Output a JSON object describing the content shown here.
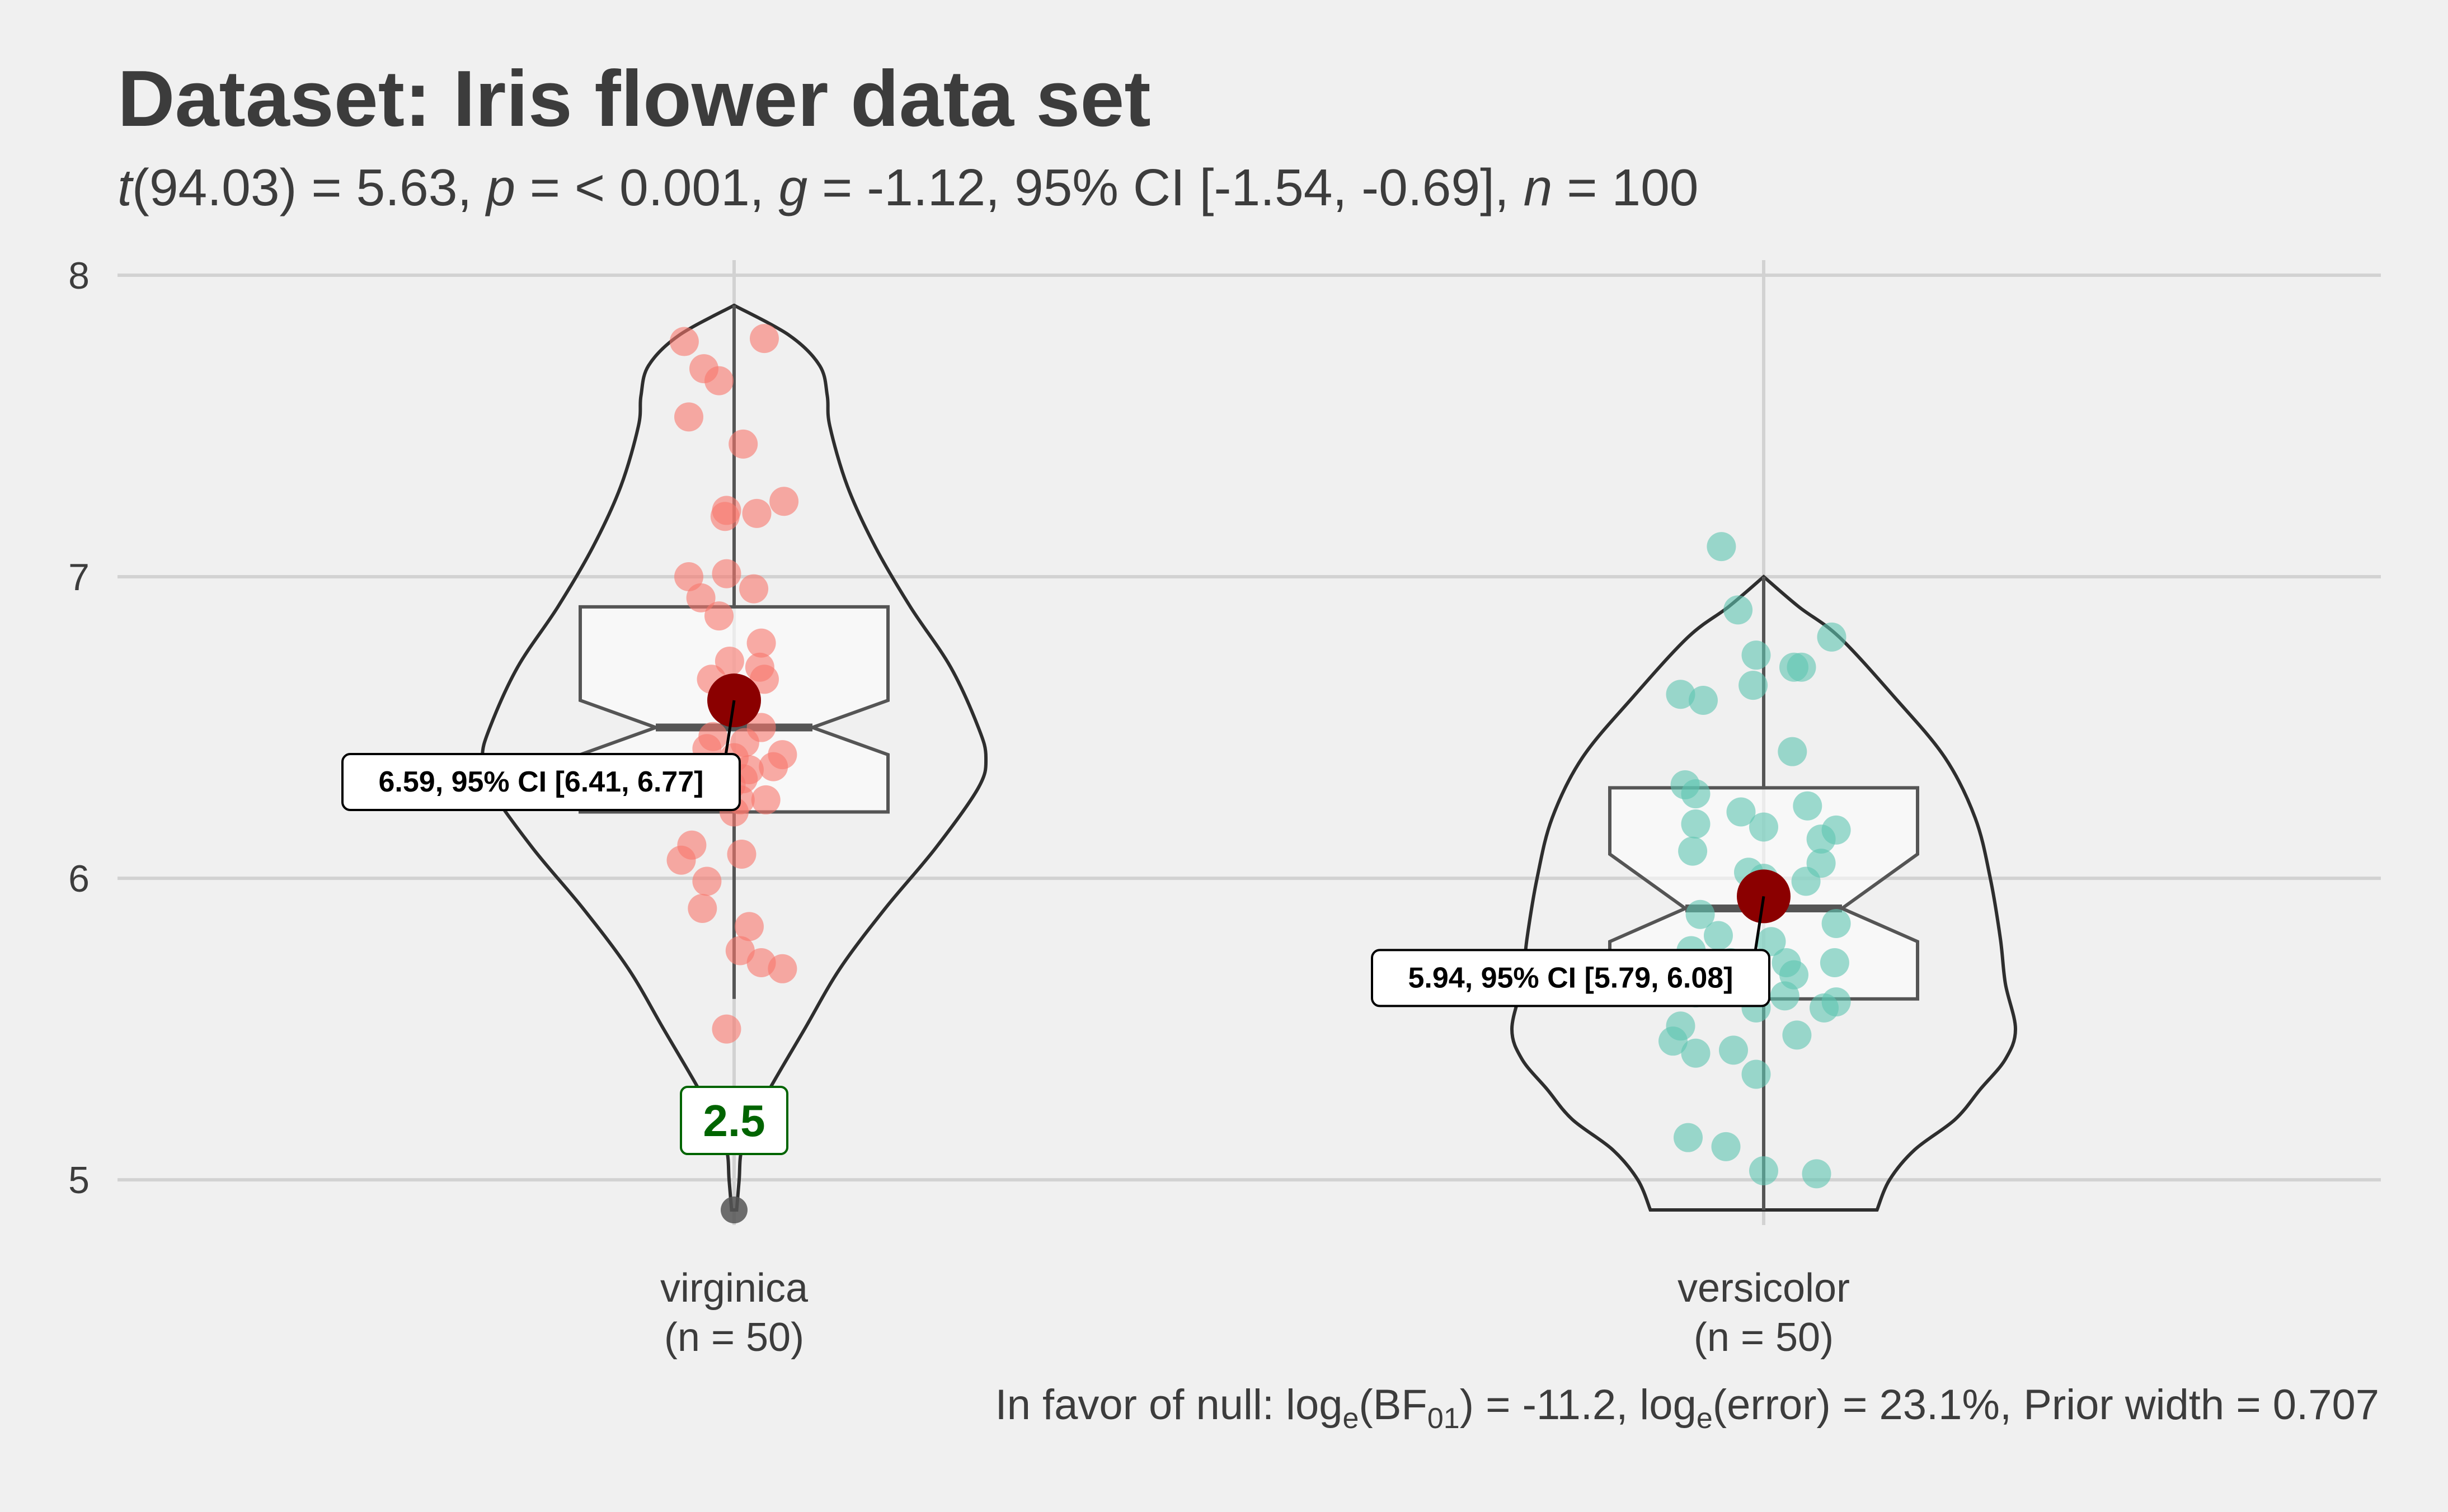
{
  "title": "Dataset: Iris flower data set",
  "subtitle": {
    "t_symbol": "t",
    "t_value": "(94.03) = 5.63, ",
    "p_symbol": "p",
    "p_value": " = < 0.001, ",
    "g_symbol": "g",
    "g_value": " = -1.12, 95% CI [-1.54, -0.69], ",
    "n_symbol": "n",
    "n_value": " = 100"
  },
  "caption": {
    "prefix": "In favor of null: log",
    "sub_e1": "e",
    "bf": "(BF",
    "sub_01": "01",
    "middle": ") = -11.2, log",
    "sub_e2": "e",
    "suffix": "(error) = 23.1%, Prior width = 0.707"
  },
  "chart_data": {
    "type": "violin",
    "ylim": [
      4.85,
      8.05
    ],
    "y_ticks": [
      5,
      6,
      7,
      8
    ],
    "y_tick_labels": [
      "5",
      "6",
      "7",
      "8"
    ],
    "grid": true,
    "legend": "none",
    "outlier_label": "2.5",
    "groups": [
      {
        "label": "virginica",
        "n_label": "(n = 50)",
        "color": "#f8766d",
        "mean": 6.59,
        "mean_label": "6.59, 95% CI [6.41, 6.77]",
        "box": {
          "q1": 6.22,
          "median": 6.5,
          "q3": 6.9,
          "notch_low": 6.41,
          "notch_high": 6.59,
          "whisker_low": 5.6,
          "whisker_high": 7.9
        },
        "outlier": 4.9,
        "violin": [
          [
            4.9,
            0.01
          ],
          [
            5.0,
            0.02
          ],
          [
            5.1,
            0.03
          ],
          [
            5.2,
            0.08
          ],
          [
            5.3,
            0.14
          ],
          [
            5.5,
            0.28
          ],
          [
            5.7,
            0.42
          ],
          [
            5.9,
            0.6
          ],
          [
            6.1,
            0.8
          ],
          [
            6.3,
            0.97
          ],
          [
            6.4,
            1.0
          ],
          [
            6.5,
            0.97
          ],
          [
            6.7,
            0.86
          ],
          [
            6.9,
            0.7
          ],
          [
            7.1,
            0.56
          ],
          [
            7.3,
            0.45
          ],
          [
            7.5,
            0.38
          ],
          [
            7.6,
            0.37
          ],
          [
            7.7,
            0.34
          ],
          [
            7.8,
            0.22
          ],
          [
            7.9,
            0.0
          ]
        ],
        "points": [
          [
            -0.33,
            7.78
          ],
          [
            0.2,
            7.79
          ],
          [
            -0.2,
            7.69
          ],
          [
            -0.1,
            7.65
          ],
          [
            -0.3,
            7.53
          ],
          [
            0.06,
            7.44
          ],
          [
            -0.05,
            7.22
          ],
          [
            -0.06,
            7.2
          ],
          [
            0.15,
            7.21
          ],
          [
            0.33,
            7.25
          ],
          [
            -0.3,
            7.0
          ],
          [
            -0.22,
            6.93
          ],
          [
            -0.05,
            7.01
          ],
          [
            0.13,
            6.96
          ],
          [
            -0.1,
            6.87
          ],
          [
            -0.03,
            6.72
          ],
          [
            0.18,
            6.78
          ],
          [
            0.17,
            6.7
          ],
          [
            -0.15,
            6.66
          ],
          [
            0.2,
            6.66
          ],
          [
            0.0,
            6.58
          ],
          [
            -0.14,
            6.47
          ],
          [
            0.18,
            6.5
          ],
          [
            0.07,
            6.45
          ],
          [
            -0.18,
            6.43
          ],
          [
            0.0,
            6.4
          ],
          [
            0.32,
            6.41
          ],
          [
            0.26,
            6.37
          ],
          [
            0.1,
            6.36
          ],
          [
            0.06,
            6.33
          ],
          [
            -0.02,
            6.31
          ],
          [
            0.04,
            6.26
          ],
          [
            0.21,
            6.26
          ],
          [
            0.0,
            6.22
          ],
          [
            -0.28,
            6.11
          ],
          [
            -0.35,
            6.06
          ],
          [
            0.05,
            6.08
          ],
          [
            -0.18,
            5.99
          ],
          [
            -0.21,
            5.9
          ],
          [
            0.1,
            5.84
          ],
          [
            0.04,
            5.76
          ],
          [
            0.18,
            5.72
          ],
          [
            0.32,
            5.7
          ],
          [
            -0.05,
            5.5
          ]
        ]
      },
      {
        "label": "versicolor",
        "n_label": "(n = 50)",
        "color": "#5ec4b0",
        "mean": 5.94,
        "mean_label": "5.94, 95% CI [5.79, 6.08]",
        "box": {
          "q1": 5.6,
          "median": 5.9,
          "q3": 6.3,
          "notch_low": 5.79,
          "notch_high": 6.08,
          "whisker_low": 4.9,
          "whisker_high": 7.0
        },
        "violin": [
          [
            4.9,
            0.45
          ],
          [
            5.0,
            0.5
          ],
          [
            5.1,
            0.6
          ],
          [
            5.2,
            0.76
          ],
          [
            5.3,
            0.86
          ],
          [
            5.4,
            0.96
          ],
          [
            5.5,
            1.0
          ],
          [
            5.65,
            0.96
          ],
          [
            5.8,
            0.94
          ],
          [
            6.0,
            0.9
          ],
          [
            6.2,
            0.84
          ],
          [
            6.4,
            0.72
          ],
          [
            6.6,
            0.52
          ],
          [
            6.8,
            0.3
          ],
          [
            6.9,
            0.14
          ],
          [
            7.0,
            0.0
          ]
        ],
        "points": [
          [
            -0.28,
            7.1
          ],
          [
            -0.17,
            6.89
          ],
          [
            0.45,
            6.8
          ],
          [
            -0.05,
            6.74
          ],
          [
            0.2,
            6.7
          ],
          [
            0.25,
            6.7
          ],
          [
            -0.55,
            6.61
          ],
          [
            -0.4,
            6.59
          ],
          [
            -0.07,
            6.64
          ],
          [
            0.19,
            6.42
          ],
          [
            -0.52,
            6.31
          ],
          [
            -0.45,
            6.28
          ],
          [
            -0.15,
            6.22
          ],
          [
            0.29,
            6.24
          ],
          [
            -0.45,
            6.18
          ],
          [
            0.0,
            6.17
          ],
          [
            0.38,
            6.13
          ],
          [
            0.48,
            6.16
          ],
          [
            -0.47,
            6.09
          ],
          [
            0.38,
            6.05
          ],
          [
            -0.1,
            6.02
          ],
          [
            0.0,
            6.0
          ],
          [
            0.28,
            5.99
          ],
          [
            -0.42,
            5.88
          ],
          [
            0.48,
            5.85
          ],
          [
            -0.3,
            5.81
          ],
          [
            0.05,
            5.79
          ],
          [
            -0.22,
            5.72
          ],
          [
            -0.48,
            5.76
          ],
          [
            0.15,
            5.72
          ],
          [
            0.2,
            5.68
          ],
          [
            0.47,
            5.72
          ],
          [
            -0.45,
            5.62
          ],
          [
            0.14,
            5.61
          ],
          [
            0.4,
            5.57
          ],
          [
            0.48,
            5.59
          ],
          [
            -0.05,
            5.57
          ],
          [
            -0.55,
            5.51
          ],
          [
            -0.6,
            5.46
          ],
          [
            -0.45,
            5.42
          ],
          [
            -0.2,
            5.43
          ],
          [
            0.22,
            5.48
          ],
          [
            -0.05,
            5.35
          ],
          [
            -0.5,
            5.14
          ],
          [
            -0.25,
            5.11
          ],
          [
            0.0,
            5.03
          ],
          [
            0.35,
            5.02
          ]
        ]
      }
    ]
  }
}
